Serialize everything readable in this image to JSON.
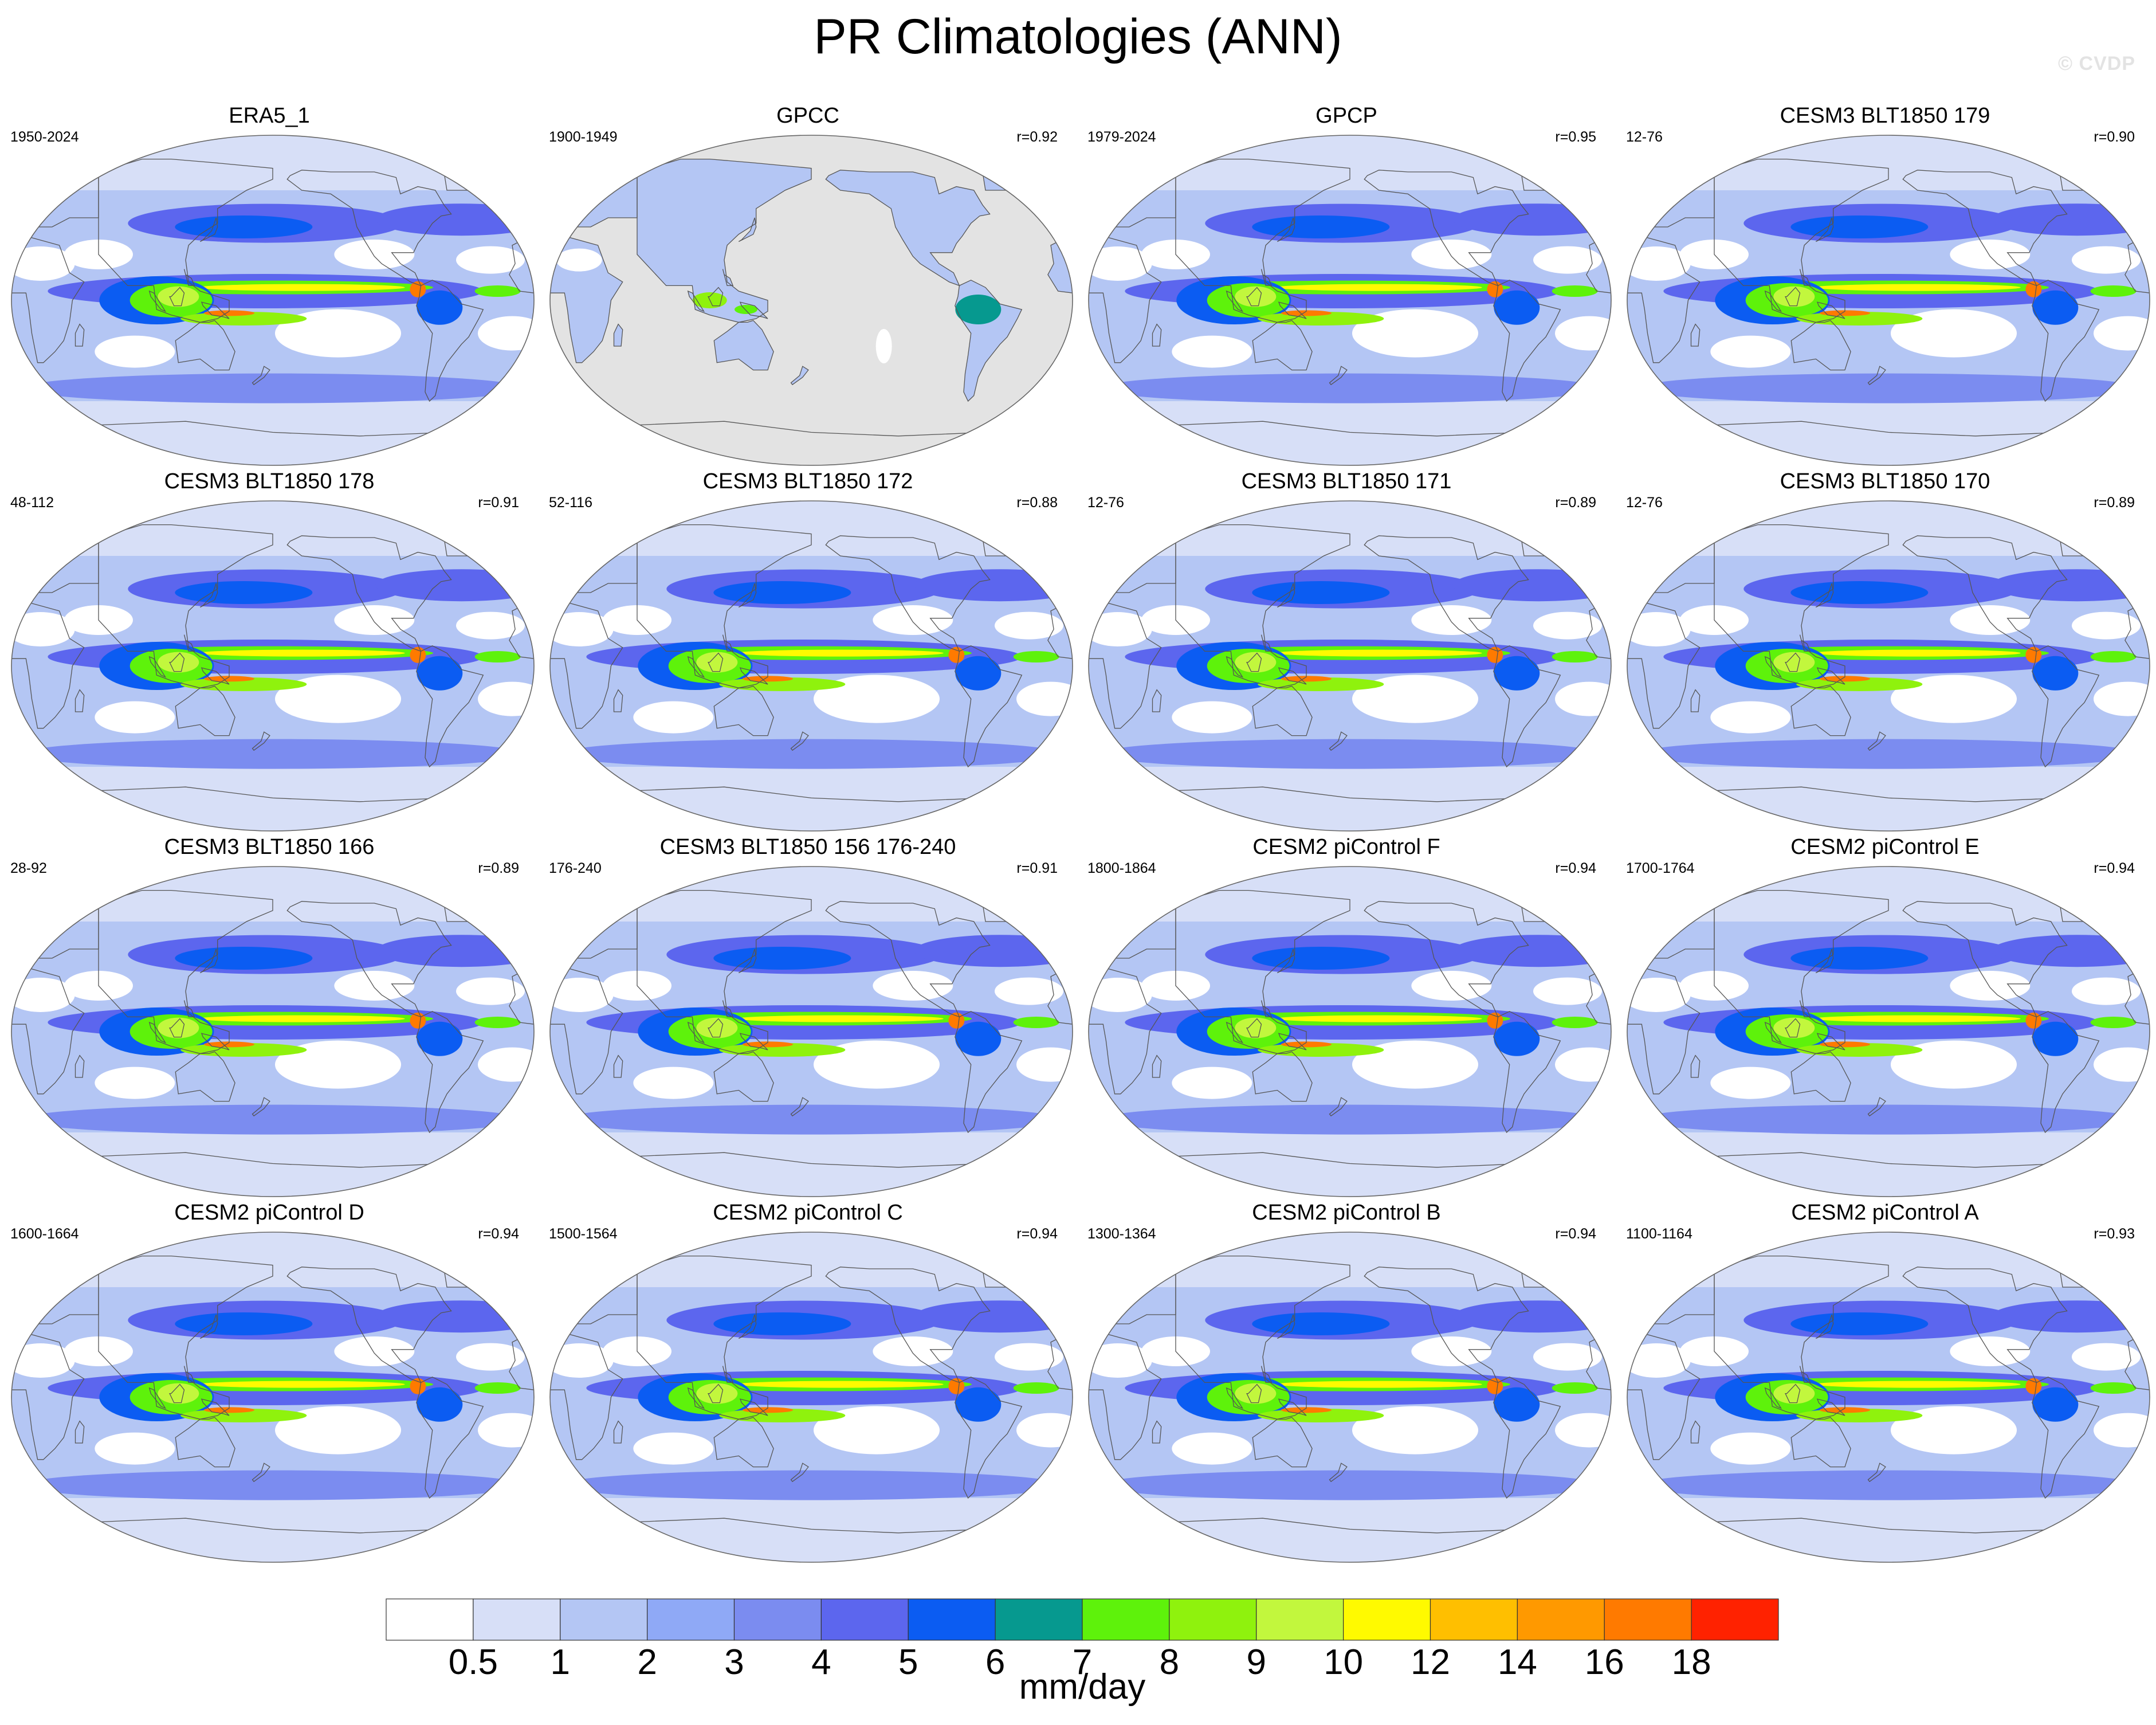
{
  "title": "PR Climatologies (ANN)",
  "watermark": "© CVDP",
  "chart_data": {
    "type": "heatmap",
    "variable": "precipitation rate",
    "season": "ANN",
    "map_projection": "Robinson, centered on the Pacific",
    "units": "mm/day",
    "colorbar": {
      "levels": [
        0.5,
        1,
        2,
        3,
        4,
        5,
        6,
        7,
        8,
        9,
        10,
        12,
        14,
        16,
        18
      ],
      "tick_labels": [
        "0.5",
        "1",
        "2",
        "3",
        "4",
        "5",
        "6",
        "7",
        "8",
        "9",
        "10",
        "12",
        "14",
        "16",
        "18"
      ],
      "colors": [
        "#ffffff",
        "#d7dff7",
        "#b4c6f4",
        "#8fa9f6",
        "#7b8cf0",
        "#5c66ee",
        "#0b5cf2",
        "#06998f",
        "#5ef20b",
        "#8ff20d",
        "#c2f73d",
        "#fffa00",
        "#ffbf00",
        "#ff9900",
        "#ff7a00",
        "#ff2200"
      ],
      "label": "mm/day"
    },
    "panels": [
      {
        "name": "ERA5_1",
        "years": "1950-2024",
        "r": ""
      },
      {
        "name": "GPCC",
        "years": "1900-1949",
        "r": "r=0.92"
      },
      {
        "name": "GPCP",
        "years": "1979-2024",
        "r": "r=0.95"
      },
      {
        "name": "CESM3 BLT1850 179",
        "years": "12-76",
        "r": "r=0.90"
      },
      {
        "name": "CESM3 BLT1850 178",
        "years": "48-112",
        "r": "r=0.91"
      },
      {
        "name": "CESM3 BLT1850 172",
        "years": "52-116",
        "r": "r=0.88"
      },
      {
        "name": "CESM3 BLT1850 171",
        "years": "12-76",
        "r": "r=0.89"
      },
      {
        "name": "CESM3 BLT1850 170",
        "years": "12-76",
        "r": "r=0.89"
      },
      {
        "name": "CESM3 BLT1850 166",
        "years": "28-92",
        "r": "r=0.89"
      },
      {
        "name": "CESM3 BLT1850 156 176-240",
        "years": "176-240",
        "r": "r=0.91"
      },
      {
        "name": "CESM2 piControl F",
        "years": "1800-1864",
        "r": "r=0.94"
      },
      {
        "name": "CESM2 piControl E",
        "years": "1700-1764",
        "r": "r=0.94"
      },
      {
        "name": "CESM2 piControl D",
        "years": "1600-1664",
        "r": "r=0.94"
      },
      {
        "name": "CESM2 piControl C",
        "years": "1500-1564",
        "r": "r=0.94"
      },
      {
        "name": "CESM2 piControl B",
        "years": "1300-1364",
        "r": "r=0.94"
      },
      {
        "name": "CESM2 piControl A",
        "years": "1100-1164",
        "r": "r=0.93"
      }
    ]
  }
}
